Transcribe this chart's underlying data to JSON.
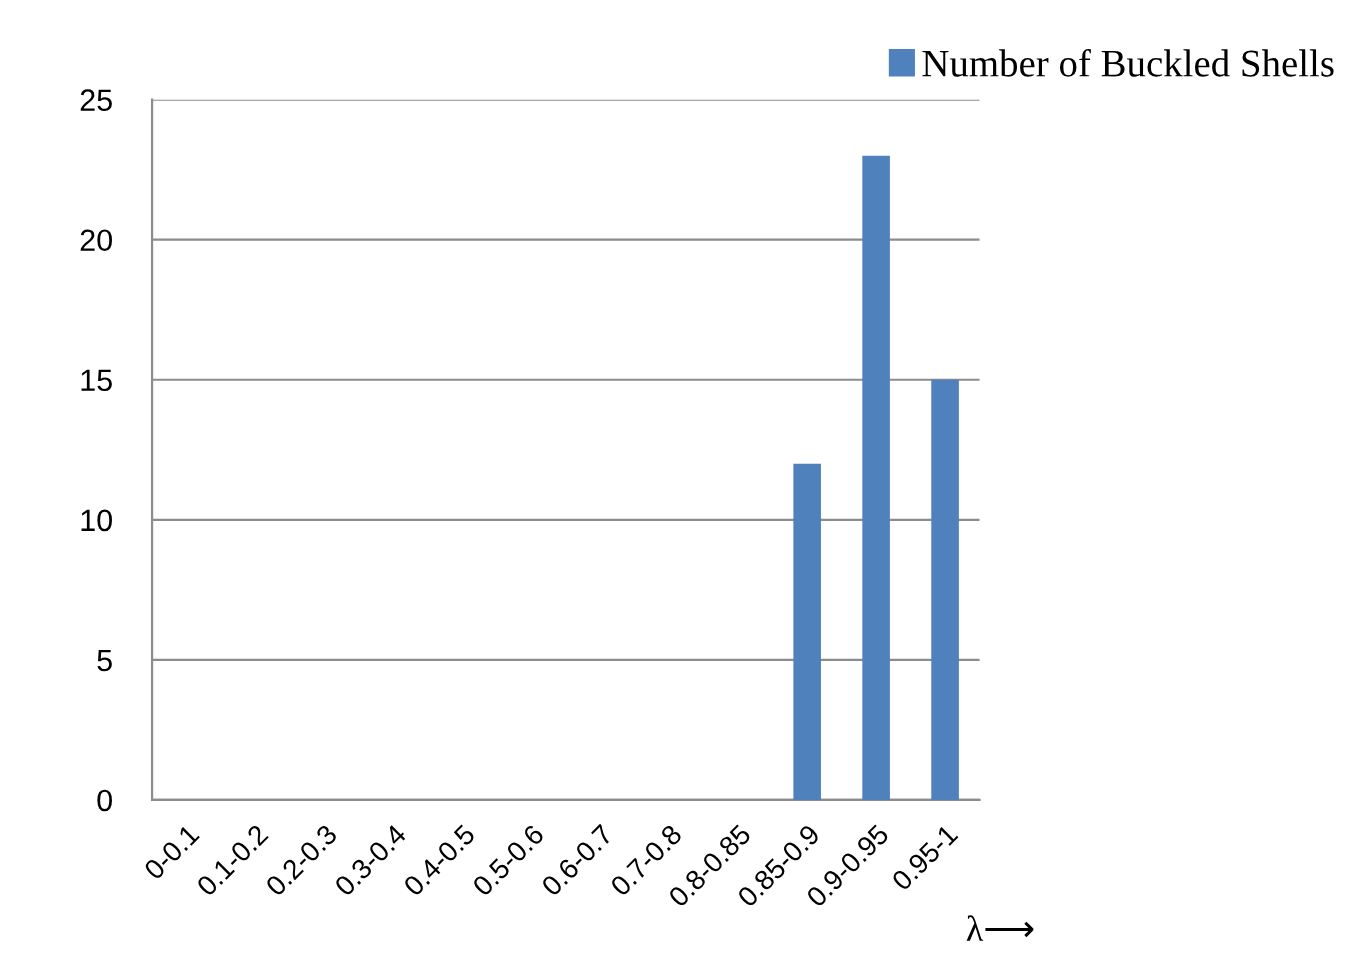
{
  "chart_data": {
    "type": "bar",
    "categories": [
      "0-0.1",
      "0.1-0.2",
      "0.2-0.3",
      "0.3-0.4",
      "0.4-0.5",
      "0.5-0.6",
      "0.6-0.7",
      "0.7-0.8",
      "0.8-0.85",
      "0.85-0.9",
      "0.9-0.95",
      "0.95-1"
    ],
    "series": [
      {
        "name": "Number of Buckled Shells",
        "color": "#4f81bd",
        "values": [
          0,
          0,
          0,
          0,
          0,
          0,
          0,
          0,
          0,
          12,
          23,
          15
        ]
      }
    ],
    "xlabel": "λ⟶",
    "ylim": [
      0,
      25
    ],
    "yticks": [
      0,
      5,
      10,
      15,
      20,
      25
    ],
    "grid": "y",
    "legend": "top right"
  }
}
